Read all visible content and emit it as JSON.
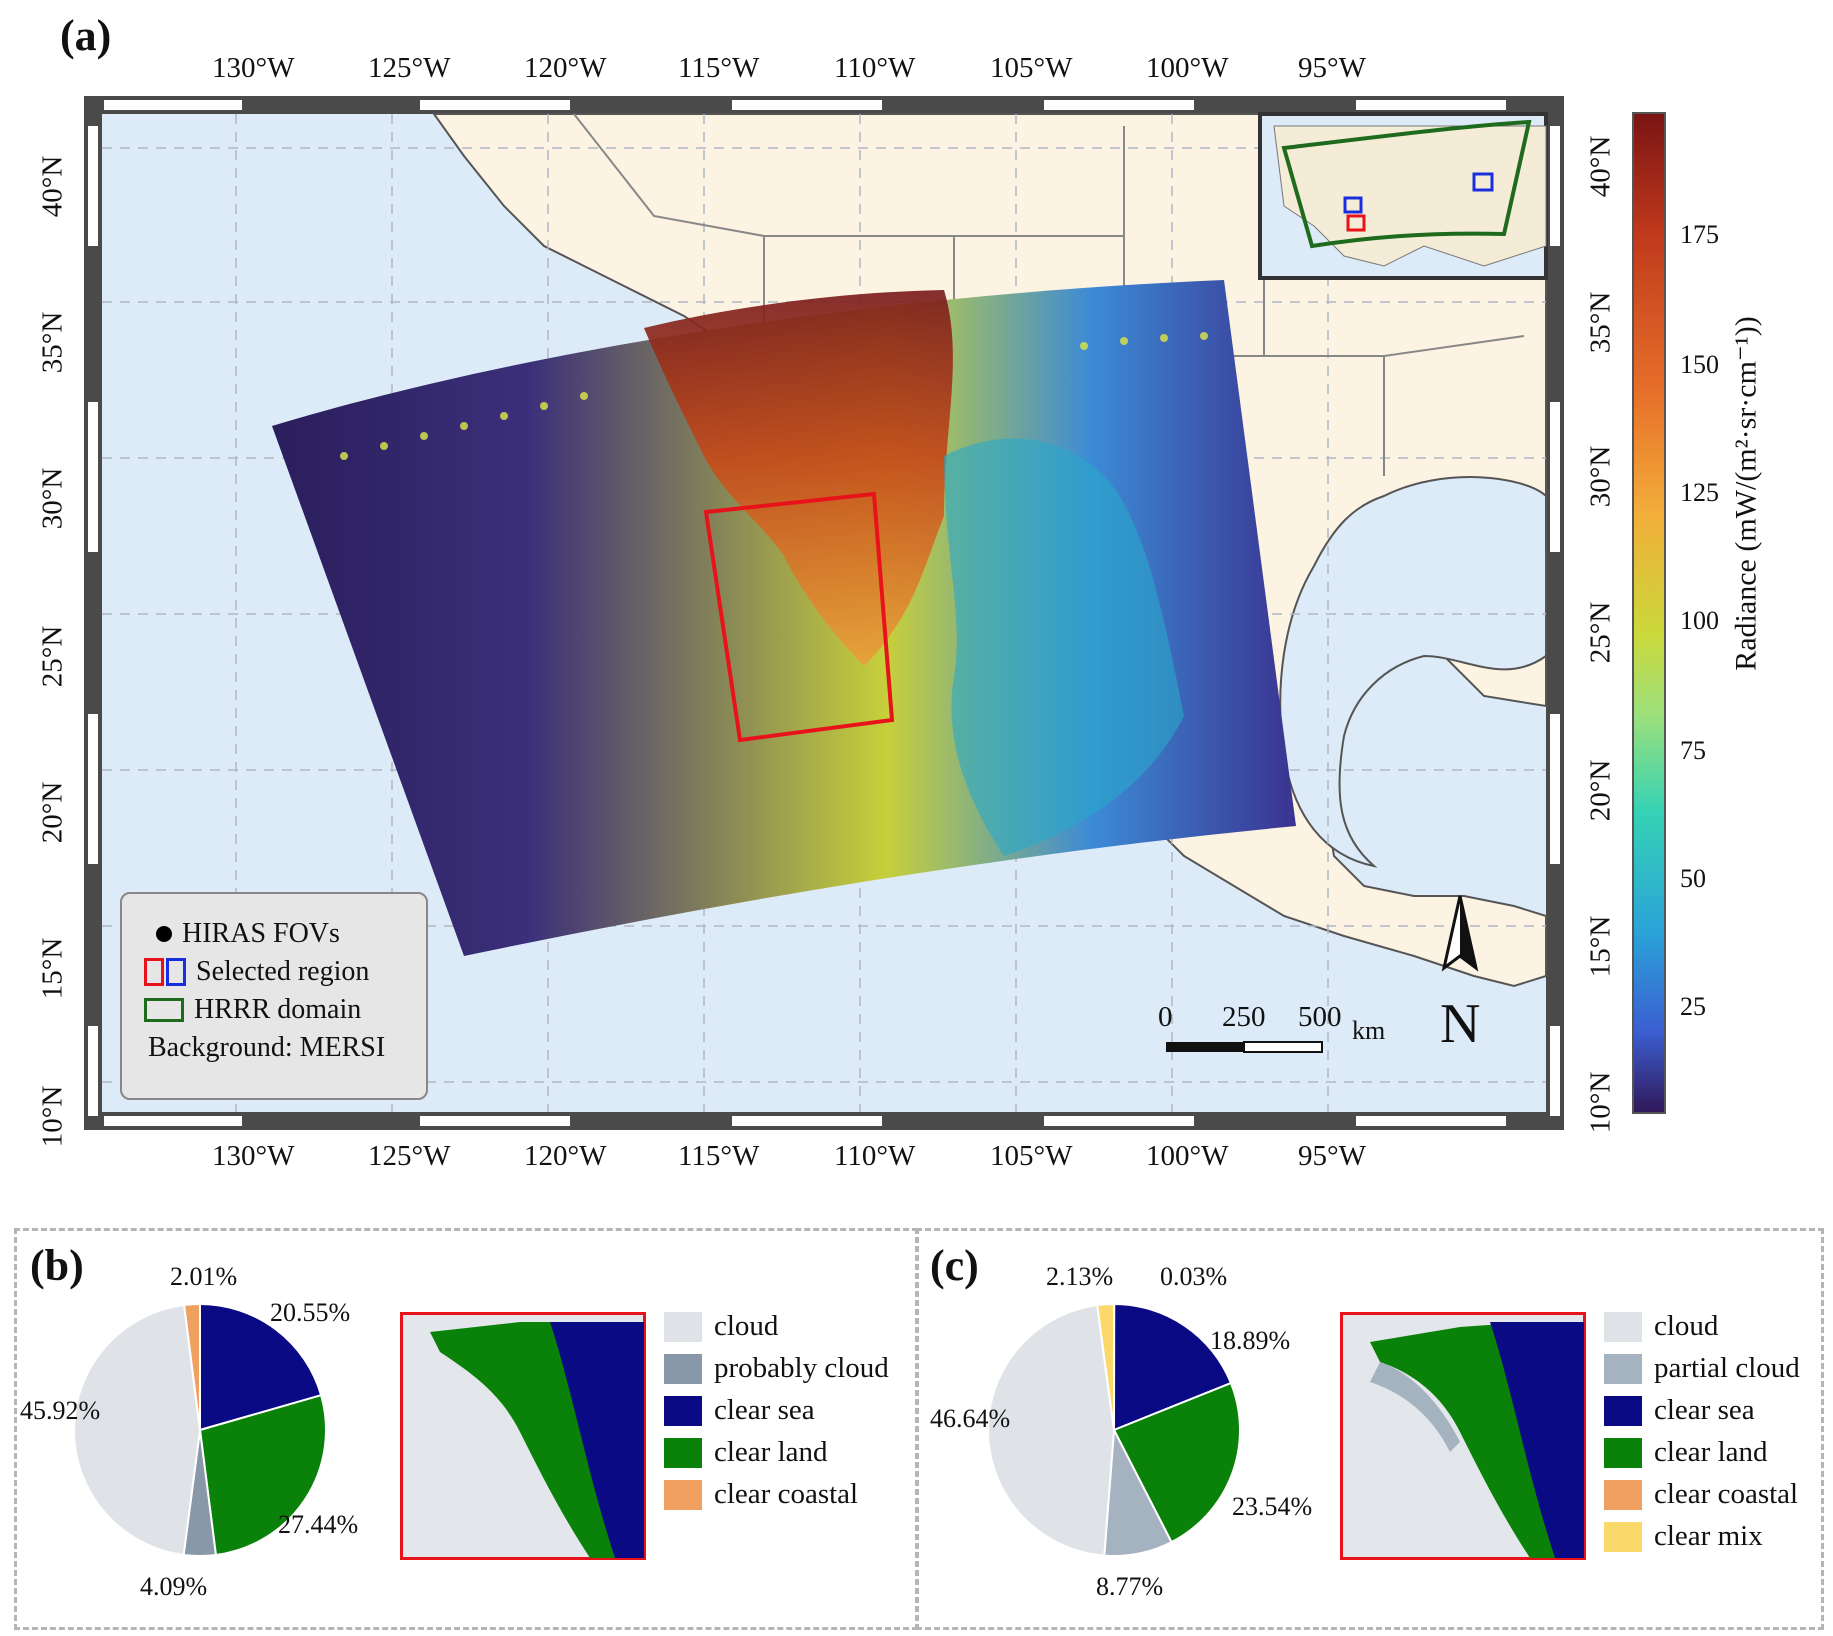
{
  "panel_a": {
    "label": "(a)",
    "lon_ticks": [
      "130°W",
      "125°W",
      "120°W",
      "115°W",
      "110°W",
      "105°W",
      "100°W",
      "95°W"
    ],
    "lat_ticks": [
      "40°N",
      "35°N",
      "30°N",
      "25°N",
      "20°N",
      "15°N",
      "10°N"
    ],
    "legend": {
      "fovs": "HIRAS FOVs",
      "selected": "Selected region",
      "hrrr": "HRRR domain",
      "background": "Background: MERSI"
    },
    "scale_bar": {
      "labels": [
        "0",
        "250",
        "500"
      ],
      "unit": "km"
    },
    "north_label": "N",
    "colorbar": {
      "label": "Radiance (mW/(m²·sr·cm⁻¹))",
      "ticks": [
        "175",
        "150",
        "125",
        "100",
        "75",
        "50",
        "25"
      ]
    },
    "colors": {
      "selected_red": "#e8131a",
      "selected_blue": "#1a2ee0",
      "hrrr_green": "#1e6b1e",
      "ocean": "#dcebf7",
      "land": "#fcf3e3"
    }
  },
  "panel_b": {
    "label": "(b)",
    "legend": [
      "cloud",
      "probably cloud",
      "clear sea",
      "clear land",
      "clear coastal"
    ],
    "pct_labels": [
      "2.01%",
      "20.55%",
      "45.92%",
      "27.44%",
      "4.09%"
    ]
  },
  "panel_c": {
    "label": "(c)",
    "legend": [
      "cloud",
      "partial cloud",
      "clear sea",
      "clear land",
      "clear coastal",
      "clear mix"
    ],
    "pct_labels": [
      "2.13%",
      "0.03%",
      "18.89%",
      "46.64%",
      "23.54%",
      "8.77%"
    ]
  },
  "chart_data": [
    {
      "type": "pie",
      "categories": [
        "cloud",
        "probably cloud",
        "clear sea",
        "clear land",
        "clear coastal"
      ],
      "values": [
        45.92,
        4.09,
        20.55,
        27.44,
        2.01
      ],
      "colors": [
        "#dfe3e8",
        "#8898a8",
        "#0a0a85",
        "#0a820a",
        "#f0a060"
      ]
    },
    {
      "type": "pie",
      "categories": [
        "cloud",
        "partial cloud",
        "clear sea",
        "clear land",
        "clear coastal",
        "clear mix"
      ],
      "values": [
        46.64,
        8.77,
        18.89,
        23.54,
        0.03,
        2.13
      ],
      "colors": [
        "#dfe3e8",
        "#a5b3c0",
        "#0a0a85",
        "#0a820a",
        "#f0a060",
        "#fad96a"
      ]
    }
  ]
}
